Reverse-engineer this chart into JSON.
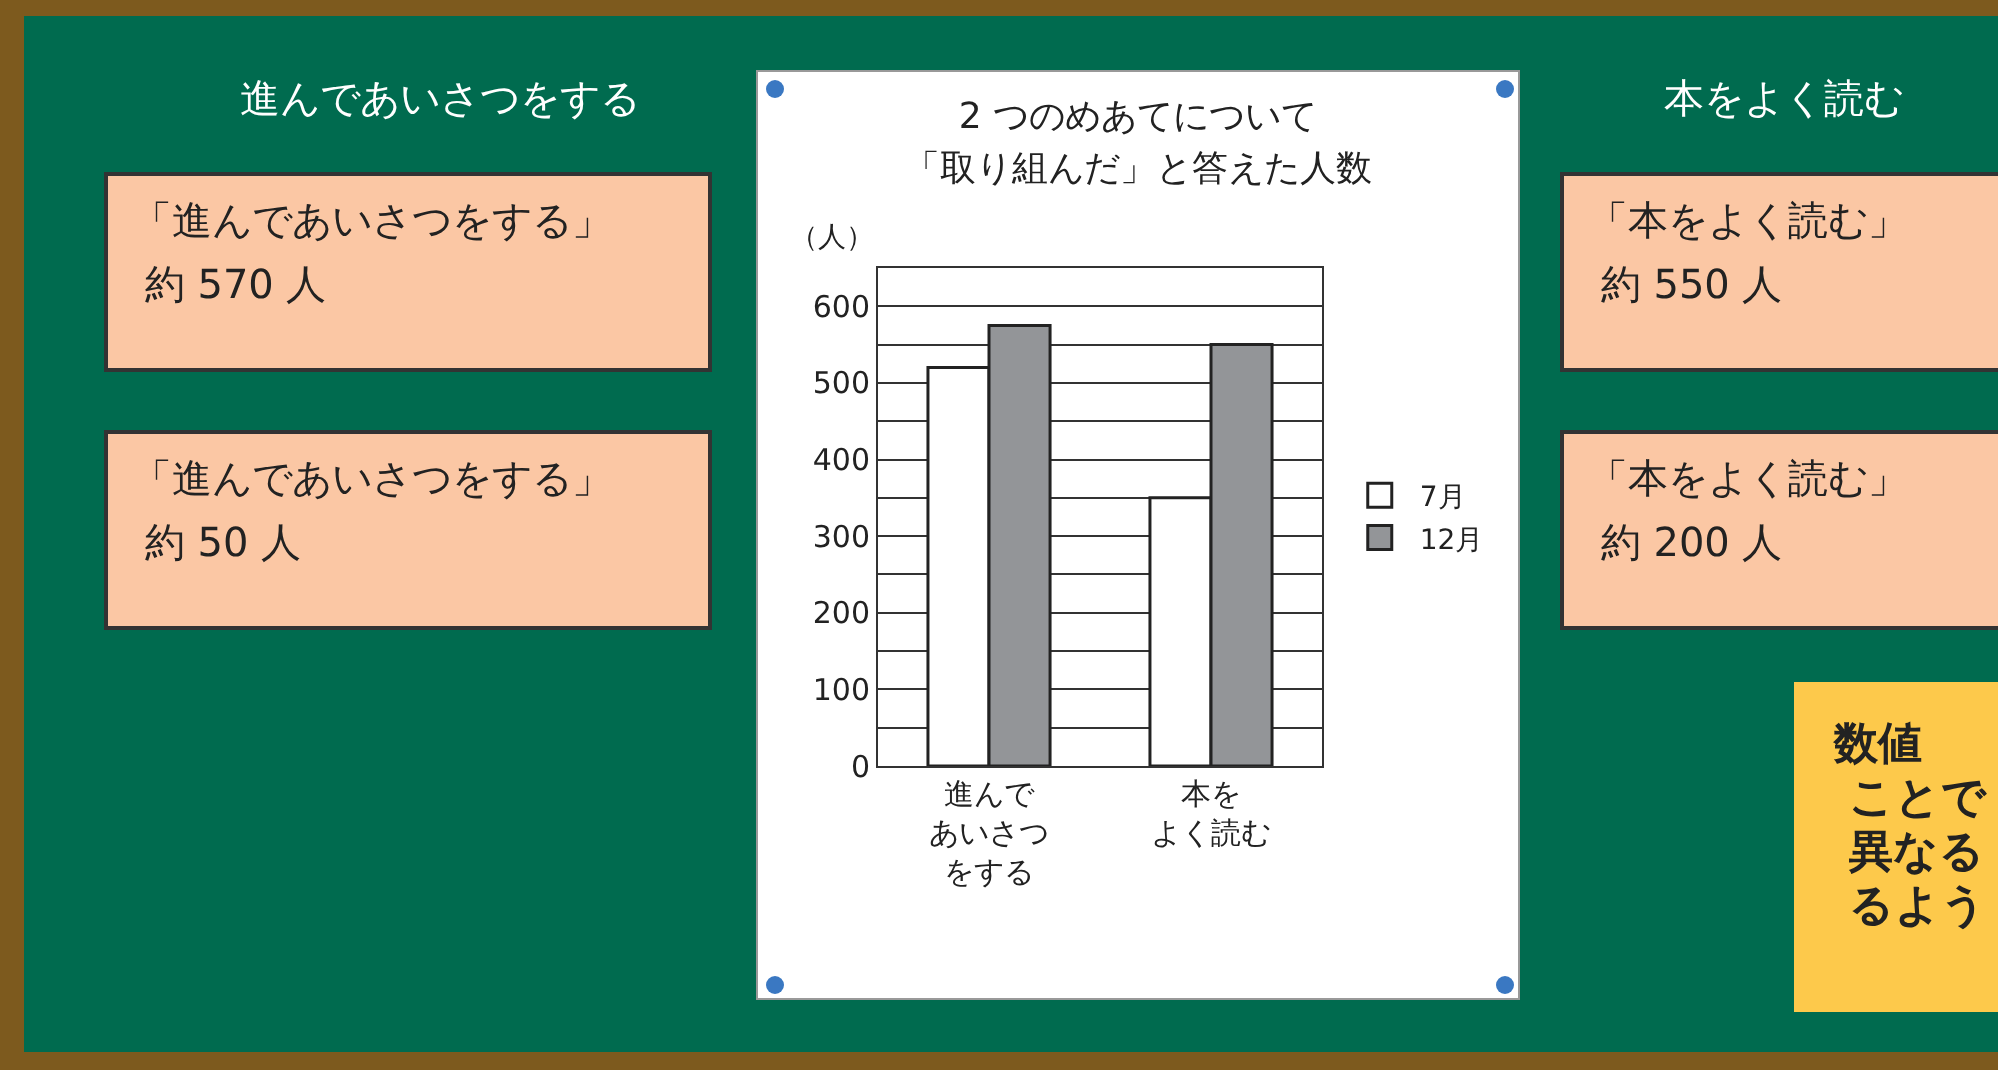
{
  "chart_data": {
    "type": "bar",
    "title": "2 つのめあてについて「取り組んだ」と答えた人数",
    "ylabel": "（人）",
    "categories": [
      "進んであいさつをする",
      "本をよく読む"
    ],
    "series": [
      {
        "name": "7月",
        "color": "#ffffff",
        "values": [
          520,
          350
        ]
      },
      {
        "name": "12月",
        "color": "#939598",
        "values": [
          575,
          550
        ]
      }
    ],
    "ylim": [
      0,
      650
    ],
    "yticks": [
      0,
      {
        "value": 50,
        "label": null
      },
      100,
      {
        "value": 150,
        "label": null
      },
      200,
      {
        "value": 250,
        "label": null
      },
      300,
      {
        "value": 350,
        "label": null
      },
      400,
      {
        "value": 450,
        "label": null
      },
      500,
      {
        "value": 550,
        "label": null
      },
      600
    ],
    "grid": "y",
    "legend": "right",
    "annotations": [
      "進んであいさつをする",
      "「進んであいさつをする」約 570 人",
      "「進んであいさつをする」約 50 人",
      "本をよく読む",
      "「本をよく読む」約 550 人",
      "「本をよく読む」約 200 人",
      "数値ことで異なるるよう"
    ]
  }
}
